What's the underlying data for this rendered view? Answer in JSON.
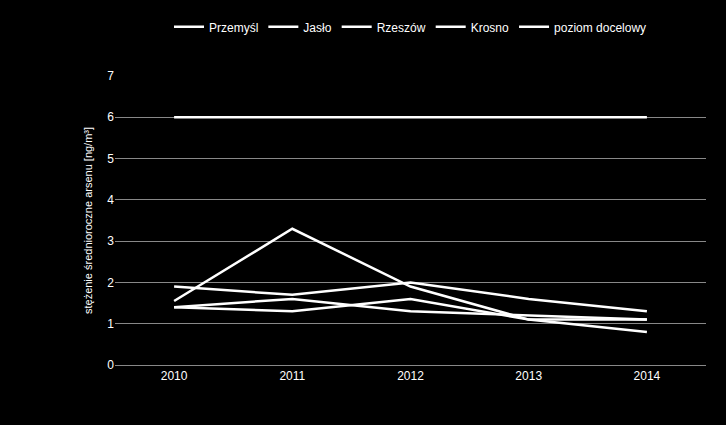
{
  "chart_data": {
    "type": "line",
    "y_label": "stężenie średnioroczne arsenu [ng/m³]",
    "categories": [
      "2010",
      "2011",
      "2012",
      "2013",
      "2014"
    ],
    "series": [
      {
        "name": "Przemyśl",
        "color": "#ffffff",
        "values": [
          1.55,
          3.3,
          1.9,
          1.1,
          0.8
        ]
      },
      {
        "name": "Jasło",
        "color": "#ffffff",
        "values": [
          1.9,
          1.7,
          2.0,
          1.6,
          1.3
        ]
      },
      {
        "name": "Rzeszów",
        "color": "#ffffff",
        "values": [
          1.4,
          1.6,
          1.3,
          1.2,
          1.1
        ]
      },
      {
        "name": "Krosno",
        "color": "#ffffff",
        "values": [
          1.4,
          1.3,
          1.6,
          1.1,
          1.1
        ]
      },
      {
        "name": "poziom docelowy",
        "color": "#ffffff",
        "values": [
          6,
          6,
          6,
          6,
          6
        ]
      }
    ],
    "ylim": [
      0,
      7
    ],
    "yticks": [
      0,
      1,
      2,
      3,
      4,
      5,
      6,
      7
    ],
    "grid": true,
    "legend": "top"
  }
}
